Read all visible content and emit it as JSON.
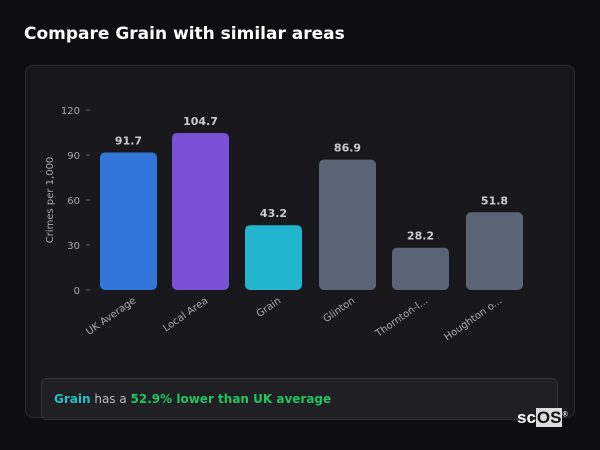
{
  "title": "Compare Grain with similar areas",
  "chart_data": {
    "type": "bar",
    "categories": [
      "UK Average",
      "Local Area",
      "Grain",
      "Glinton",
      "Thornton-l...",
      "Houghton o..."
    ],
    "values": [
      91.7,
      104.7,
      43.2,
      86.9,
      28.2,
      51.8
    ],
    "value_labels": [
      "91.7",
      "104.7",
      "43.2",
      "86.9",
      "28.2",
      "51.8"
    ],
    "colors": [
      "#3276d9",
      "#7b4fd6",
      "#22b5cf",
      "#5a6475",
      "#5a6475",
      "#5a6475"
    ],
    "ylabel": "Crimes per 1,000",
    "yticks": [
      0,
      30,
      60,
      90,
      120
    ],
    "ylim": [
      0,
      120
    ],
    "grid": false
  },
  "summary": {
    "area": "Grain",
    "middle": " has a ",
    "comparison": "52.9% lower than UK average"
  },
  "logo": {
    "text": "sc",
    "box": "OS",
    "mark": "®"
  }
}
